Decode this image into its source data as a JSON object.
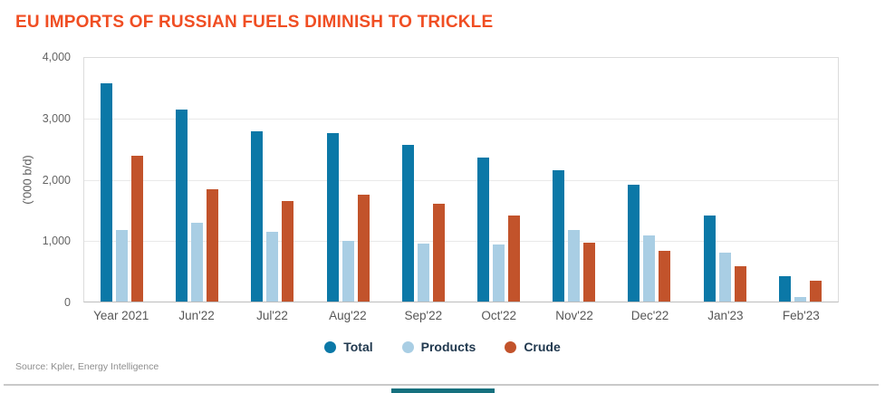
{
  "title": "EU IMPORTS OF RUSSIAN FUELS DIMINISH TO TRICKLE",
  "source": "Source: Kpler, Energy Intelligence",
  "colors": {
    "title": "#F04E23",
    "total": "#0B78A7",
    "products": "#A9CEE4",
    "crude": "#C2532B",
    "footer_bar": "#15707E"
  },
  "chart_data": {
    "type": "bar",
    "title": "EU IMPORTS OF RUSSIAN FUELS DIMINISH TO TRICKLE",
    "ylabel": "('000 b/d)",
    "xlabel": "",
    "ylim": [
      0,
      4000
    ],
    "ytick_step": 1000,
    "grid": true,
    "legend_position": "bottom",
    "categories": [
      "Year 2021",
      "Jun'22",
      "Jul'22",
      "Aug'22",
      "Sep'22",
      "Oct'22",
      "Nov'22",
      "Dec'22",
      "Jan'23",
      "Feb'23"
    ],
    "series": [
      {
        "name": "Total",
        "color": "#0B78A7",
        "values": [
          3590,
          3150,
          2800,
          2760,
          2570,
          2360,
          2160,
          1915,
          1420,
          420
        ]
      },
      {
        "name": "Products",
        "color": "#A9CEE4",
        "values": [
          1170,
          1300,
          1140,
          990,
          950,
          935,
          1170,
          1080,
          810,
          70
        ]
      },
      {
        "name": "Crude",
        "color": "#C2532B",
        "values": [
          2400,
          1840,
          1650,
          1760,
          1600,
          1410,
          965,
          830,
          585,
          340
        ]
      }
    ]
  }
}
